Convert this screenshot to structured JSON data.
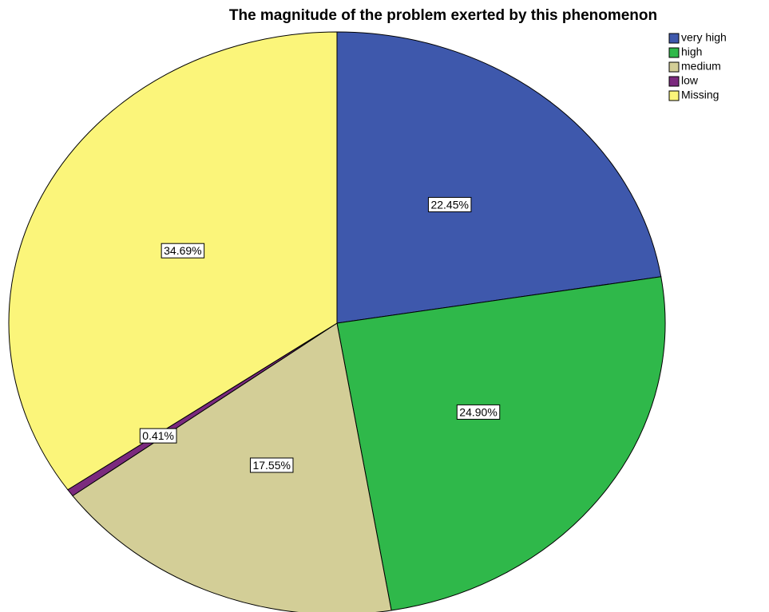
{
  "chart_data": {
    "type": "pie",
    "title": "The magnitude of the problem exerted by this phenomenon",
    "categories": [
      "very high",
      "high",
      "medium",
      "low",
      "Missing"
    ],
    "values": [
      22.45,
      24.9,
      17.55,
      0.41,
      34.69
    ],
    "value_labels": [
      "22.45%",
      "24.90%",
      "17.55%",
      "0.41%",
      "34.69%"
    ],
    "colors": [
      "#3e58ac",
      "#2fb84a",
      "#d3ce97",
      "#7b2a7e",
      "#fbf57a"
    ],
    "legend": "top-right"
  }
}
